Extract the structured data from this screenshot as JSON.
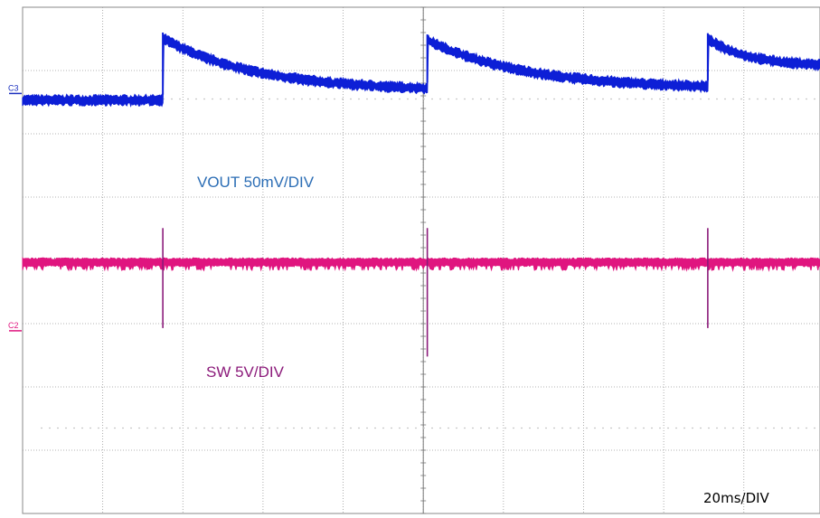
{
  "chart_data": {
    "type": "line",
    "title": "",
    "timebase_label": "20ms/DIV",
    "grid": true,
    "divisions": {
      "x": 10,
      "y": 8
    },
    "x_unit": "ms",
    "x_per_div": 20,
    "xlim": [
      0,
      200
    ],
    "series": [
      {
        "name": "VOUT",
        "channel": "C3",
        "annotation": "VOUT 50mV/DIV",
        "color": "#0d1fd6",
        "label_color": "#2b6db5",
        "marker_color": "#1a2fbf",
        "volts_per_div": "50mV/DIV",
        "offset_div": 2.68,
        "kind": "sawtooth",
        "jumps_ms": [
          35,
          101,
          171
        ],
        "x": [
          0,
          35,
          35,
          101,
          101,
          171,
          171,
          200
        ],
        "level_div": [
          -0.15,
          -0.15,
          0.83,
          0.04,
          0.8,
          0.07,
          0.82,
          0.41
        ],
        "noise_div": 0.09
      },
      {
        "name": "SW",
        "channel": "C2",
        "annotation": "SW 5V/DIV",
        "color": "#e0157f",
        "label_color": "#8b1a7a",
        "marker_color": "#e0157f",
        "volts_per_div": "5V/DIV",
        "offset_div": -1.07,
        "kind": "flat_with_spikes",
        "level_div": 1.04,
        "noise_div": 0.07,
        "spikes": [
          {
            "x": 35,
            "top_div": 1.58,
            "bottom_div": 0.0,
            "color": "#8b1a7a"
          },
          {
            "x": 101,
            "top_div": 1.58,
            "bottom_div": -0.45,
            "color": "#8b1a7a"
          },
          {
            "x": 171,
            "top_div": 1.58,
            "bottom_div": 0.0,
            "color": "#8b1a7a"
          }
        ]
      }
    ]
  }
}
